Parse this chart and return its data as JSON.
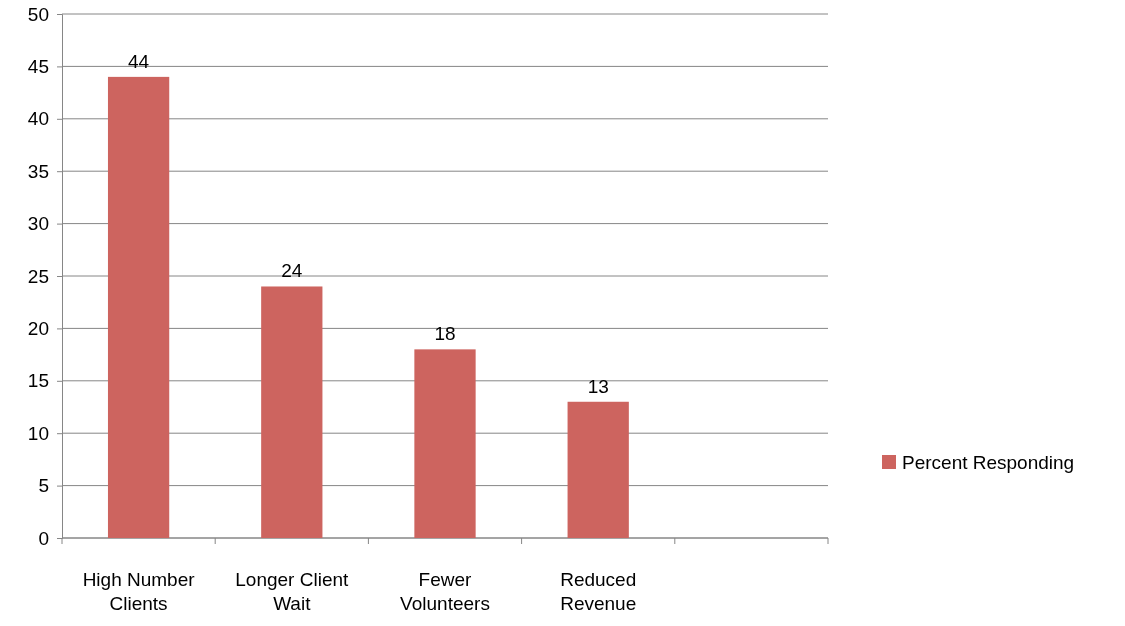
{
  "chart_data": {
    "type": "bar",
    "categories": [
      "High Number Clients",
      "Longer Client Wait",
      "Fewer Volunteers",
      "Reduced Revenue",
      null
    ],
    "series": [
      {
        "name": "Percent Responding",
        "color": "#cd645f",
        "values": [
          44,
          24,
          18,
          13,
          null
        ]
      }
    ],
    "ylim": [
      0,
      50
    ],
    "yticks": [
      0,
      5,
      10,
      15,
      20,
      25,
      30,
      35,
      40,
      45,
      50
    ],
    "grid": "y",
    "legend": "right",
    "data_labels": true
  }
}
